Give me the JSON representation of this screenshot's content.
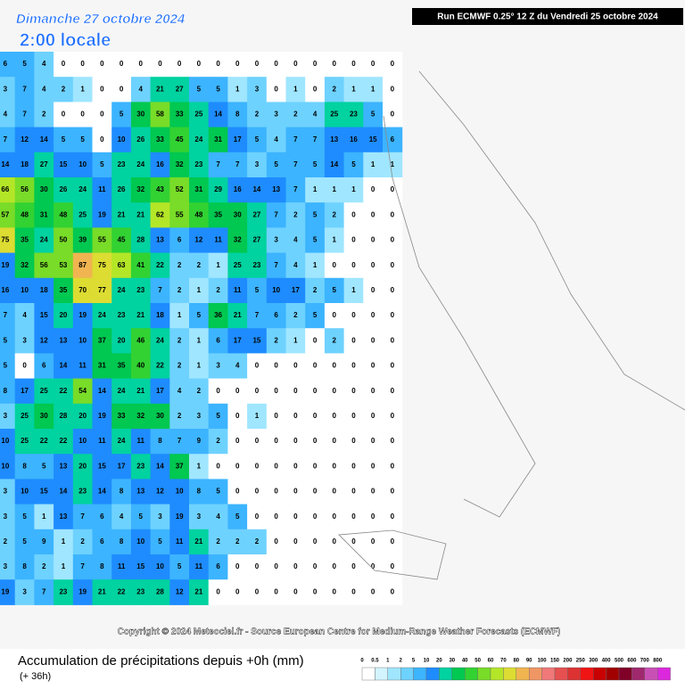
{
  "header": {
    "date": "Dimanche 27 octobre 2024",
    "time": "2:00 locale",
    "run": "Run ECMWF 0.25° 12 Z du Vendredi 25 octobre 2024"
  },
  "copyright": "Copyright © 2024 Meteociel.fr - Source European Centre for Medium-Range Weather Forecasts (ECMWF)",
  "footer": {
    "title": "Accumulation de précipitations depuis +0h (mm)",
    "lead": "(+ 36h)"
  },
  "legend": {
    "levels": [
      0,
      0.5,
      1,
      2,
      5,
      10,
      20,
      30,
      40,
      50,
      60,
      70,
      80,
      90,
      100,
      150,
      200,
      250,
      300,
      400,
      500,
      600,
      700,
      800
    ],
    "colors": [
      "#ffffff",
      "#d2f5ff",
      "#a0e6ff",
      "#6ed2ff",
      "#3cb4ff",
      "#1e8cff",
      "#00d2a0",
      "#00c850",
      "#32d232",
      "#78dc28",
      "#b4e628",
      "#dcdc32",
      "#f0b450",
      "#f09664",
      "#f07878",
      "#e65050",
      "#dc3232",
      "#f01414",
      "#c80000",
      "#a00000",
      "#800028",
      "#a0286e",
      "#c850b4",
      "#dc28dc"
    ]
  },
  "grid": {
    "rows": [
      [
        6,
        5,
        4,
        0,
        0,
        0,
        0,
        0,
        0,
        0,
        0,
        0,
        0,
        0,
        0,
        0,
        0,
        0,
        0,
        0,
        0
      ],
      [
        3,
        7,
        4,
        2,
        1,
        0,
        0,
        4,
        21,
        27,
        5,
        5,
        1,
        3,
        0,
        1,
        0,
        2,
        1,
        1,
        0
      ],
      [
        4,
        7,
        2,
        0,
        0,
        0,
        5,
        30,
        58,
        33,
        25,
        14,
        8,
        2,
        3,
        2,
        4,
        25,
        23,
        5,
        0
      ],
      [
        7,
        12,
        14,
        5,
        5,
        0,
        10,
        26,
        33,
        45,
        24,
        31,
        17,
        5,
        4,
        7,
        7,
        13,
        16,
        15,
        6
      ],
      [
        14,
        18,
        27,
        15,
        10,
        5,
        23,
        24,
        16,
        32,
        23,
        7,
        7,
        3,
        5,
        7,
        5,
        14,
        5,
        1,
        1
      ],
      [
        66,
        56,
        30,
        26,
        24,
        11,
        26,
        32,
        43,
        52,
        31,
        29,
        16,
        14,
        13,
        7,
        1,
        1,
        1,
        0,
        0
      ],
      [
        57,
        48,
        31,
        48,
        25,
        19,
        21,
        21,
        62,
        55,
        48,
        35,
        30,
        27,
        7,
        2,
        5,
        2,
        0,
        0,
        0
      ],
      [
        75,
        35,
        24,
        50,
        39,
        55,
        45,
        28,
        13,
        6,
        12,
        11,
        32,
        27,
        3,
        4,
        5,
        1,
        0,
        0,
        0
      ],
      [
        19,
        32,
        56,
        53,
        87,
        75,
        63,
        41,
        22,
        2,
        2,
        1,
        25,
        23,
        7,
        4,
        1,
        0,
        0,
        0,
        0
      ],
      [
        16,
        10,
        18,
        35,
        70,
        77,
        24,
        23,
        7,
        2,
        1,
        2,
        11,
        5,
        10,
        17,
        2,
        5,
        1,
        0,
        0
      ],
      [
        7,
        4,
        15,
        20,
        19,
        24,
        23,
        21,
        18,
        1,
        5,
        36,
        21,
        7,
        6,
        2,
        5,
        0,
        0,
        0,
        0
      ],
      [
        5,
        3,
        12,
        13,
        10,
        37,
        20,
        46,
        24,
        2,
        1,
        6,
        17,
        15,
        2,
        1,
        0,
        2,
        0,
        0,
        0
      ],
      [
        5,
        0,
        6,
        14,
        11,
        31,
        35,
        40,
        22,
        2,
        1,
        3,
        4,
        0,
        0,
        0,
        0,
        0,
        0,
        0,
        0
      ],
      [
        8,
        17,
        25,
        22,
        54,
        14,
        24,
        21,
        17,
        4,
        2,
        0,
        0,
        0,
        0,
        0,
        0,
        0,
        0,
        0,
        0
      ],
      [
        3,
        25,
        30,
        28,
        20,
        19,
        33,
        32,
        30,
        2,
        3,
        5,
        0,
        1,
        0,
        0,
        0,
        0,
        0,
        0,
        0
      ],
      [
        10,
        25,
        22,
        22,
        10,
        11,
        24,
        11,
        8,
        7,
        9,
        2,
        0,
        0,
        0,
        0,
        0,
        0,
        0,
        0,
        0
      ],
      [
        10,
        8,
        5,
        13,
        20,
        15,
        17,
        23,
        14,
        37,
        1,
        0,
        0,
        0,
        0,
        0,
        0,
        0,
        0,
        0,
        0
      ],
      [
        3,
        10,
        15,
        14,
        23,
        14,
        8,
        13,
        12,
        10,
        8,
        5,
        0,
        0,
        0,
        0,
        0,
        0,
        0,
        0,
        0
      ],
      [
        3,
        5,
        1,
        13,
        7,
        6,
        4,
        5,
        3,
        19,
        3,
        4,
        5,
        0,
        0,
        0,
        0,
        0,
        0,
        0,
        0
      ],
      [
        2,
        5,
        9,
        1,
        2,
        6,
        8,
        10,
        5,
        11,
        21,
        2,
        2,
        2,
        0,
        0,
        0,
        0,
        0,
        0,
        0
      ],
      [
        3,
        8,
        2,
        1,
        7,
        8,
        11,
        15,
        10,
        5,
        11,
        6,
        0,
        0,
        0,
        0,
        0,
        0,
        0,
        0,
        0
      ],
      [
        19,
        3,
        7,
        23,
        19,
        21,
        22,
        23,
        28,
        12,
        21,
        0,
        0,
        0,
        0,
        0,
        0,
        0,
        0,
        0,
        0
      ]
    ]
  }
}
